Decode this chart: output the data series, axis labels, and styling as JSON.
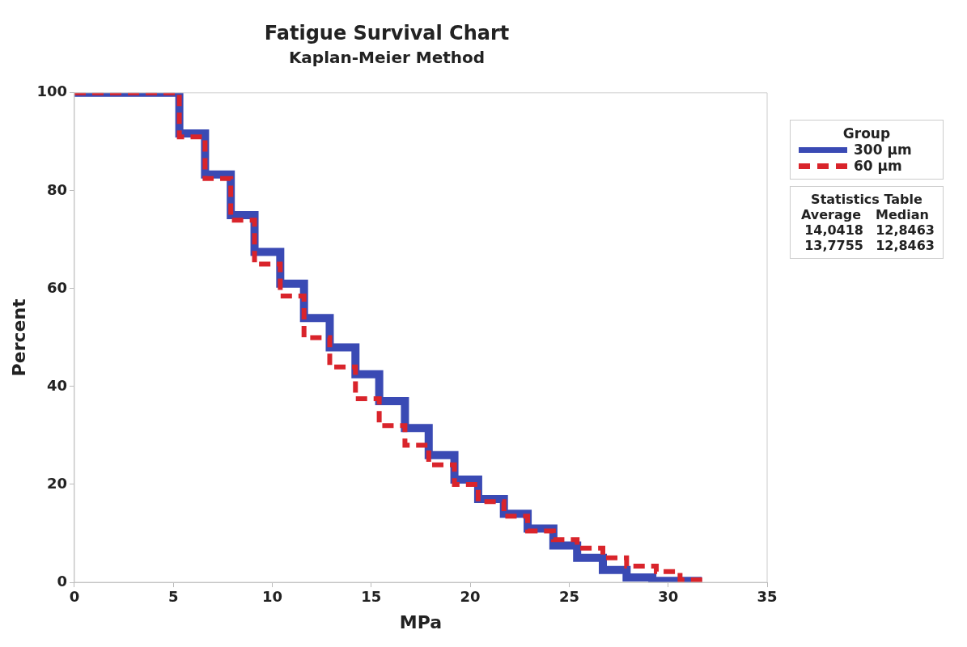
{
  "chart_data": {
    "type": "step",
    "title": "Fatigue Survival Chart",
    "subtitle": "Kaplan-Meier Method",
    "xlabel": "MPa",
    "ylabel": "Percent",
    "legend_title": "Group",
    "legend": "top right",
    "grid": false,
    "marker": "none",
    "xlim": [
      0,
      35
    ],
    "xticks": [
      0,
      5,
      10,
      15,
      20,
      25,
      30,
      35
    ],
    "ylim": [
      0,
      100
    ],
    "yticks": [
      0,
      20,
      40,
      60,
      80,
      100
    ],
    "series": [
      {
        "name": "300 µm",
        "color": "#3a4ab4",
        "line_style": "solid",
        "x": [
          0,
          5.3,
          6.6,
          7.9,
          9.1,
          10.4,
          11.6,
          12.9,
          14.2,
          15.4,
          16.7,
          17.9,
          19.2,
          20.4,
          21.7,
          22.9,
          24.2,
          25.4,
          26.7,
          27.9,
          29.2,
          31.7
        ],
        "values": [
          100,
          91.7,
          83.3,
          75,
          67.5,
          61,
          54,
          48,
          42.5,
          37,
          31.5,
          26,
          21,
          17,
          14,
          11,
          7.5,
          5,
          2.5,
          1,
          0.3,
          0.3
        ]
      },
      {
        "name": "60 µm",
        "color": "#d9242b",
        "line_style": "dashed",
        "x": [
          0,
          5.3,
          6.6,
          7.9,
          9.1,
          10.4,
          11.6,
          12.9,
          14.2,
          15.4,
          16.7,
          17.9,
          19.2,
          20.4,
          21.7,
          22.9,
          24.2,
          25.4,
          26.7,
          27.9,
          29.4,
          30.6,
          31.8
        ],
        "values": [
          100,
          91,
          82.5,
          74,
          65,
          58.5,
          50,
          44,
          37.5,
          32,
          28,
          24,
          20,
          16.5,
          13.5,
          10.5,
          8.7,
          7,
          5,
          3.3,
          2.2,
          0.5,
          0.5
        ]
      }
    ],
    "annotations": [
      "Statistics Table",
      "Average",
      "Median",
      "14,0418",
      "12,8463",
      "13,7755",
      "12,8463"
    ]
  }
}
